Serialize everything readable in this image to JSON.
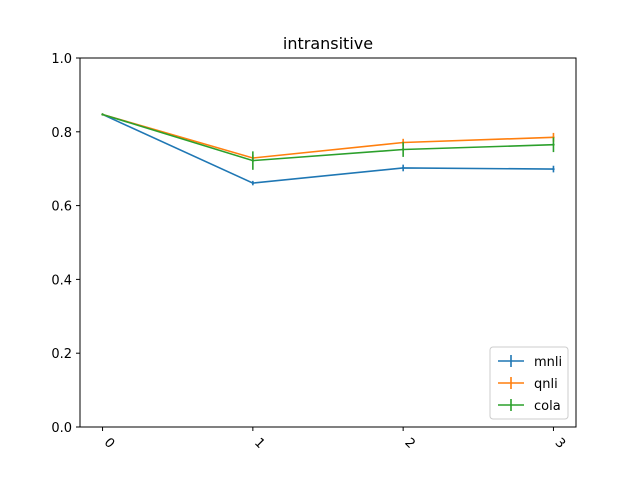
{
  "chart_data": {
    "type": "line",
    "title": "intransitive",
    "xlabel": "",
    "ylabel": "",
    "x": [
      0,
      1,
      2,
      3
    ],
    "xticks": [
      "0",
      "1",
      "2",
      "3"
    ],
    "ylim": [
      0.0,
      1.0
    ],
    "yticks": [
      "0.0",
      "0.2",
      "0.4",
      "0.6",
      "0.8",
      "1.0"
    ],
    "legend_position": "lower-right",
    "grid": false,
    "series": [
      {
        "name": "mnli",
        "color": "#1f77b4",
        "values": [
          0.847,
          0.661,
          0.702,
          0.699
        ],
        "errors": [
          0.0,
          0.006,
          0.009,
          0.009
        ]
      },
      {
        "name": "qnli",
        "color": "#ff7f0e",
        "values": [
          0.847,
          0.729,
          0.771,
          0.785
        ],
        "errors": [
          0.0,
          0.008,
          0.01,
          0.012
        ]
      },
      {
        "name": "cola",
        "color": "#2ca02c",
        "values": [
          0.847,
          0.722,
          0.752,
          0.765
        ],
        "errors": [
          0.0,
          0.025,
          0.02,
          0.02
        ]
      }
    ]
  }
}
